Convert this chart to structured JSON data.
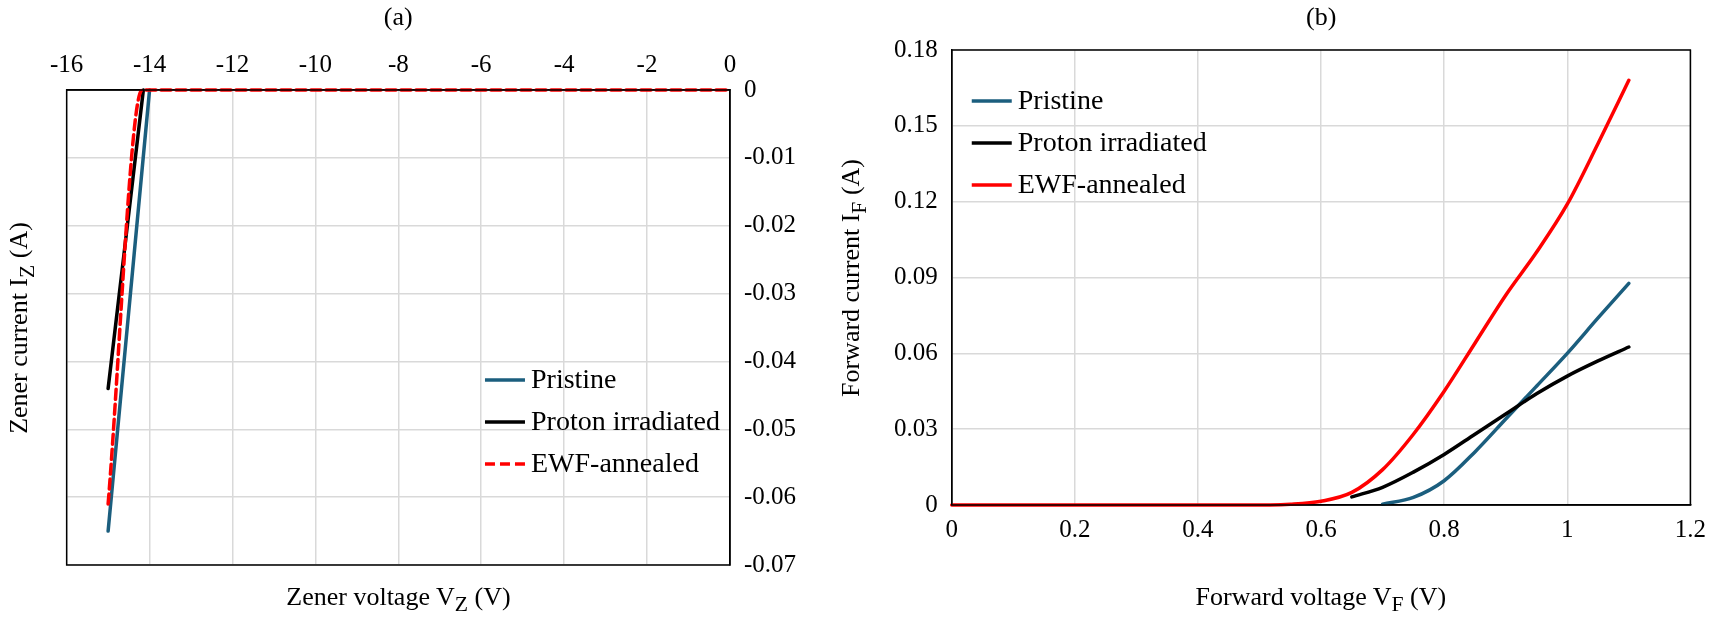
{
  "chart_data": [
    {
      "type": "line",
      "title": "(a)",
      "xlabel": "Zener voltage V$_{Z}$ (V)",
      "ylabel": "Zener current I$_{Z}$ (A)",
      "xlim": [
        -16,
        0
      ],
      "xticks": [
        -16,
        -14,
        -12,
        -10,
        -8,
        -6,
        -4,
        -2,
        0
      ],
      "ylim": [
        -0.07,
        0
      ],
      "yticks": [
        -0.07,
        -0.06,
        -0.05,
        -0.04,
        -0.03,
        -0.02,
        -0.01,
        0
      ],
      "grid": true,
      "legend": "bottom right",
      "marker": "none",
      "series": [
        {
          "name": "Pristine",
          "color": "#1b5e7e",
          "x": [
            -15,
            -14.0
          ],
          "values": [
            -0.065,
            0
          ]
        },
        {
          "name": "Proton irradiated",
          "color": "#000000",
          "x": [
            -15,
            -14.15
          ],
          "values": [
            -0.044,
            0
          ]
        },
        {
          "name": "EWF-annealed",
          "color": "#ff0000",
          "line_style": "dashed",
          "x": [
            -15,
            -14.18,
            0
          ],
          "values": [
            -0.061,
            0,
            0
          ]
        }
      ]
    },
    {
      "type": "line",
      "title": "(b)",
      "xlabel": "Forward voltage V$_{F}$ (V)",
      "ylabel": "Forward current I$_{F}$ (A)",
      "xlim": [
        0,
        1.2
      ],
      "xticks": [
        0,
        0.2,
        0.4,
        0.6,
        0.8,
        1,
        1.2
      ],
      "ylim": [
        0,
        0.18
      ],
      "yticks": [
        0,
        0.03,
        0.06,
        0.09,
        0.12,
        0.15,
        0.18
      ],
      "grid": true,
      "legend": "top left",
      "marker": "none",
      "series": [
        {
          "name": "Pristine",
          "color": "#1b5e7e",
          "x": [
            0.7,
            0.75,
            0.8,
            0.85,
            0.9,
            0.95,
            1.0,
            1.05,
            1.1
          ],
          "values": [
            0.0003,
            0.003,
            0.0096,
            0.021,
            0.034,
            0.047,
            0.06,
            0.074,
            0.0877
          ]
        },
        {
          "name": "Proton irradiated",
          "color": "#000000",
          "x": [
            0.65,
            0.7,
            0.75,
            0.8,
            0.85,
            0.9,
            0.95,
            1.0,
            1.05,
            1.1
          ],
          "values": [
            0.0032,
            0.007,
            0.013,
            0.02,
            0.028,
            0.036,
            0.044,
            0.051,
            0.057,
            0.0625
          ]
        },
        {
          "name": "EWF-annealed",
          "color": "#ff0000",
          "x": [
            0,
            0.5,
            0.55,
            0.6,
            0.65,
            0.7,
            0.75,
            0.8,
            0.85,
            0.9,
            0.95,
            1.0,
            1.05,
            1.1
          ],
          "values": [
            0,
            0,
            0.0003,
            0.0015,
            0.005,
            0.014,
            0.028,
            0.045,
            0.064,
            0.083,
            0.1,
            0.119,
            0.143,
            0.168
          ]
        }
      ]
    }
  ]
}
